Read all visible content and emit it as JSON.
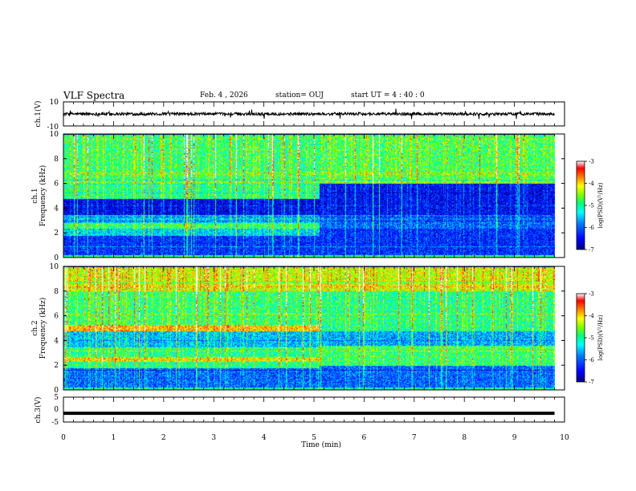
{
  "header": {
    "title": "VLF Spectra",
    "date": "Feb. 4 , 2026",
    "station": "station= OUJ",
    "start": "start  UT  =   4 : 40 : 0"
  },
  "colors": {
    "colormap": [
      "#000080",
      "#0000ff",
      "#0080ff",
      "#00ffff",
      "#00ff80",
      "#80ff00",
      "#ffff00",
      "#ff8000",
      "#ff0000",
      "#ffffff"
    ],
    "trace": "#000000"
  },
  "chart_data": [
    {
      "type": "line",
      "ylabel": "ch.1(V)",
      "ylim": [
        -10,
        10
      ],
      "yticks": [
        10,
        -10
      ],
      "xlim": [
        0,
        10
      ],
      "description_values": {
        "baseline": 0,
        "noise_amplitude": 1.5,
        "spike_amplitude": 5
      }
    },
    {
      "type": "heatmap",
      "ylabel_line1": "ch.1",
      "ylabel_line2": "Frequency (kHz)",
      "ylim": [
        0,
        10
      ],
      "yticks": [
        0,
        2,
        4,
        6,
        8,
        10
      ],
      "xlim": [
        0,
        10
      ],
      "colorbar": {
        "label": "log(PSD)(V²/Hz)",
        "range": [
          -7,
          -3
        ],
        "ticks": [
          "-3",
          "-4",
          "-5",
          "-6",
          "-7"
        ]
      },
      "change_time_min": 5.1,
      "bands_before": [
        {
          "f_low": 0.2,
          "f_high": 1.8,
          "level": -6.3
        },
        {
          "f_low": 1.8,
          "f_high": 2.4,
          "level": -5.5
        },
        {
          "f_low": 2.4,
          "f_high": 2.8,
          "level": -4.9
        },
        {
          "f_low": 2.8,
          "f_high": 3.5,
          "level": -5.6
        },
        {
          "f_low": 3.5,
          "f_high": 4.8,
          "level": -6.6
        },
        {
          "f_low": 4.8,
          "f_high": 6.0,
          "level": -5.0
        },
        {
          "f_low": 6.0,
          "f_high": 10.0,
          "level": -4.9
        }
      ],
      "bands_after": [
        {
          "f_low": 0.2,
          "f_high": 2.4,
          "level": -6.3
        },
        {
          "f_low": 2.4,
          "f_high": 3.5,
          "level": -6.0
        },
        {
          "f_low": 3.5,
          "f_high": 6.0,
          "level": -6.5
        },
        {
          "f_low": 6.0,
          "f_high": 10.0,
          "level": -4.8
        }
      ]
    },
    {
      "type": "heatmap",
      "ylabel_line1": "ch.2",
      "ylabel_line2": "Frequency (kHz)",
      "ylim": [
        0,
        10
      ],
      "yticks": [
        0,
        2,
        4,
        6,
        8,
        10
      ],
      "xlim": [
        0,
        10
      ],
      "colorbar": {
        "label": "log(PSD)(V²/Hz)",
        "range": [
          -7,
          -3
        ],
        "ticks": [
          "-3",
          "-4",
          "-5",
          "-6",
          "-7"
        ]
      },
      "change_time_min": 5.1,
      "bands_before": [
        {
          "f_low": 0.2,
          "f_high": 1.8,
          "level": -6.0
        },
        {
          "f_low": 1.8,
          "f_high": 2.3,
          "level": -5.0
        },
        {
          "f_low": 2.3,
          "f_high": 2.7,
          "level": -4.2
        },
        {
          "f_low": 2.7,
          "f_high": 3.5,
          "level": -5.0
        },
        {
          "f_low": 3.5,
          "f_high": 4.8,
          "level": -5.6
        },
        {
          "f_low": 4.8,
          "f_high": 5.3,
          "level": -4.0
        },
        {
          "f_low": 5.3,
          "f_high": 8.0,
          "level": -4.9
        },
        {
          "f_low": 8.0,
          "f_high": 10.0,
          "level": -4.3
        }
      ],
      "bands_after": [
        {
          "f_low": 0.2,
          "f_high": 2.0,
          "level": -6.0
        },
        {
          "f_low": 2.0,
          "f_high": 3.6,
          "level": -4.9
        },
        {
          "f_low": 3.6,
          "f_high": 4.8,
          "level": -5.7
        },
        {
          "f_low": 4.8,
          "f_high": 8.0,
          "level": -5.0
        },
        {
          "f_low": 8.0,
          "f_high": 10.0,
          "level": -4.3
        }
      ]
    },
    {
      "type": "line",
      "ylabel": "ch.3(V)",
      "ylim": [
        -5,
        5
      ],
      "yticks": [
        5,
        0,
        -5
      ],
      "xlim": [
        0,
        10
      ],
      "values_constant": -1.5,
      "xlabel": "Time  (min)",
      "xticks": [
        0,
        1,
        2,
        3,
        4,
        5,
        6,
        7,
        8,
        9,
        10
      ]
    }
  ]
}
